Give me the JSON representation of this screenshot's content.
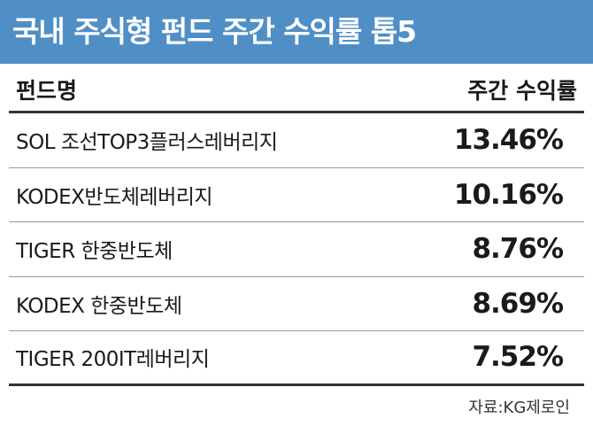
{
  "header": {
    "title": "국내 주식형 펀드 주간 수익률 톱5"
  },
  "table": {
    "columns": [
      "펀드명",
      "주간 수익률"
    ],
    "rows": [
      [
        "SOL 조선TOP3플러스레버리지",
        "13.46%"
      ],
      [
        "KODEX반도체레버리지",
        "10.16%"
      ],
      [
        "TIGER 한중반도체",
        "8.76%"
      ],
      [
        "KODEX 한중반도체",
        "8.69%"
      ],
      [
        "TIGER 200IT레버리지",
        "7.52%"
      ]
    ]
  },
  "source": "자료:KG제로인"
}
